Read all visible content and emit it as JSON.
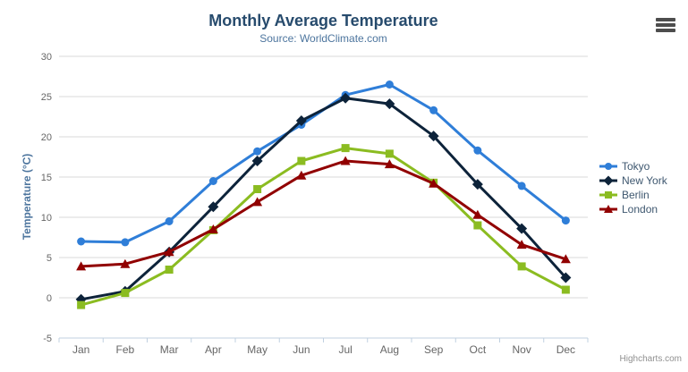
{
  "header": {
    "title": "Monthly Average Temperature",
    "subtitle": "Source: WorldClimate.com"
  },
  "credits": "Highcharts.com",
  "chart_data": {
    "type": "line",
    "title": "Monthly Average Temperature",
    "subtitle": "Source: WorldClimate.com",
    "categories": [
      "Jan",
      "Feb",
      "Mar",
      "Apr",
      "May",
      "Jun",
      "Jul",
      "Aug",
      "Sep",
      "Oct",
      "Nov",
      "Dec"
    ],
    "xlabel": "",
    "ylabel": "Temperature (°C)",
    "ylim": [
      -5,
      30
    ],
    "ytick_interval": 5,
    "ytick_labels": [
      "-5",
      "0",
      "5",
      "10",
      "15",
      "20",
      "25",
      "30"
    ],
    "grid": true,
    "legend_position": "right-middle",
    "series": [
      {
        "name": "Tokyo",
        "color": "#2f7ed8",
        "marker": "circle",
        "values": [
          7.0,
          6.9,
          9.5,
          14.5,
          18.2,
          21.5,
          25.2,
          26.5,
          23.3,
          18.3,
          13.9,
          9.6
        ]
      },
      {
        "name": "New York",
        "color": "#0d233a",
        "marker": "diamond",
        "values": [
          -0.2,
          0.8,
          5.7,
          11.3,
          17.0,
          22.0,
          24.8,
          24.1,
          20.1,
          14.1,
          8.6,
          2.5
        ]
      },
      {
        "name": "Berlin",
        "color": "#8bbc21",
        "marker": "square",
        "values": [
          -0.9,
          0.6,
          3.5,
          8.4,
          13.5,
          17.0,
          18.6,
          17.9,
          14.3,
          9.0,
          3.9,
          1.0
        ]
      },
      {
        "name": "London",
        "color": "#910000",
        "marker": "triangle",
        "values": [
          3.9,
          4.2,
          5.7,
          8.5,
          11.9,
          15.2,
          17.0,
          16.6,
          14.2,
          10.3,
          6.6,
          4.8
        ]
      }
    ],
    "style_colors": {
      "grid_line": "#d8d8d8",
      "axis_line": "#c0d0e0",
      "tick_label": "#666666",
      "axis_title": "#4d759e",
      "title": "#274b6d",
      "subtitle": "#4d759e",
      "legend_text": "#3e576f",
      "credits_text": "#909090"
    }
  }
}
